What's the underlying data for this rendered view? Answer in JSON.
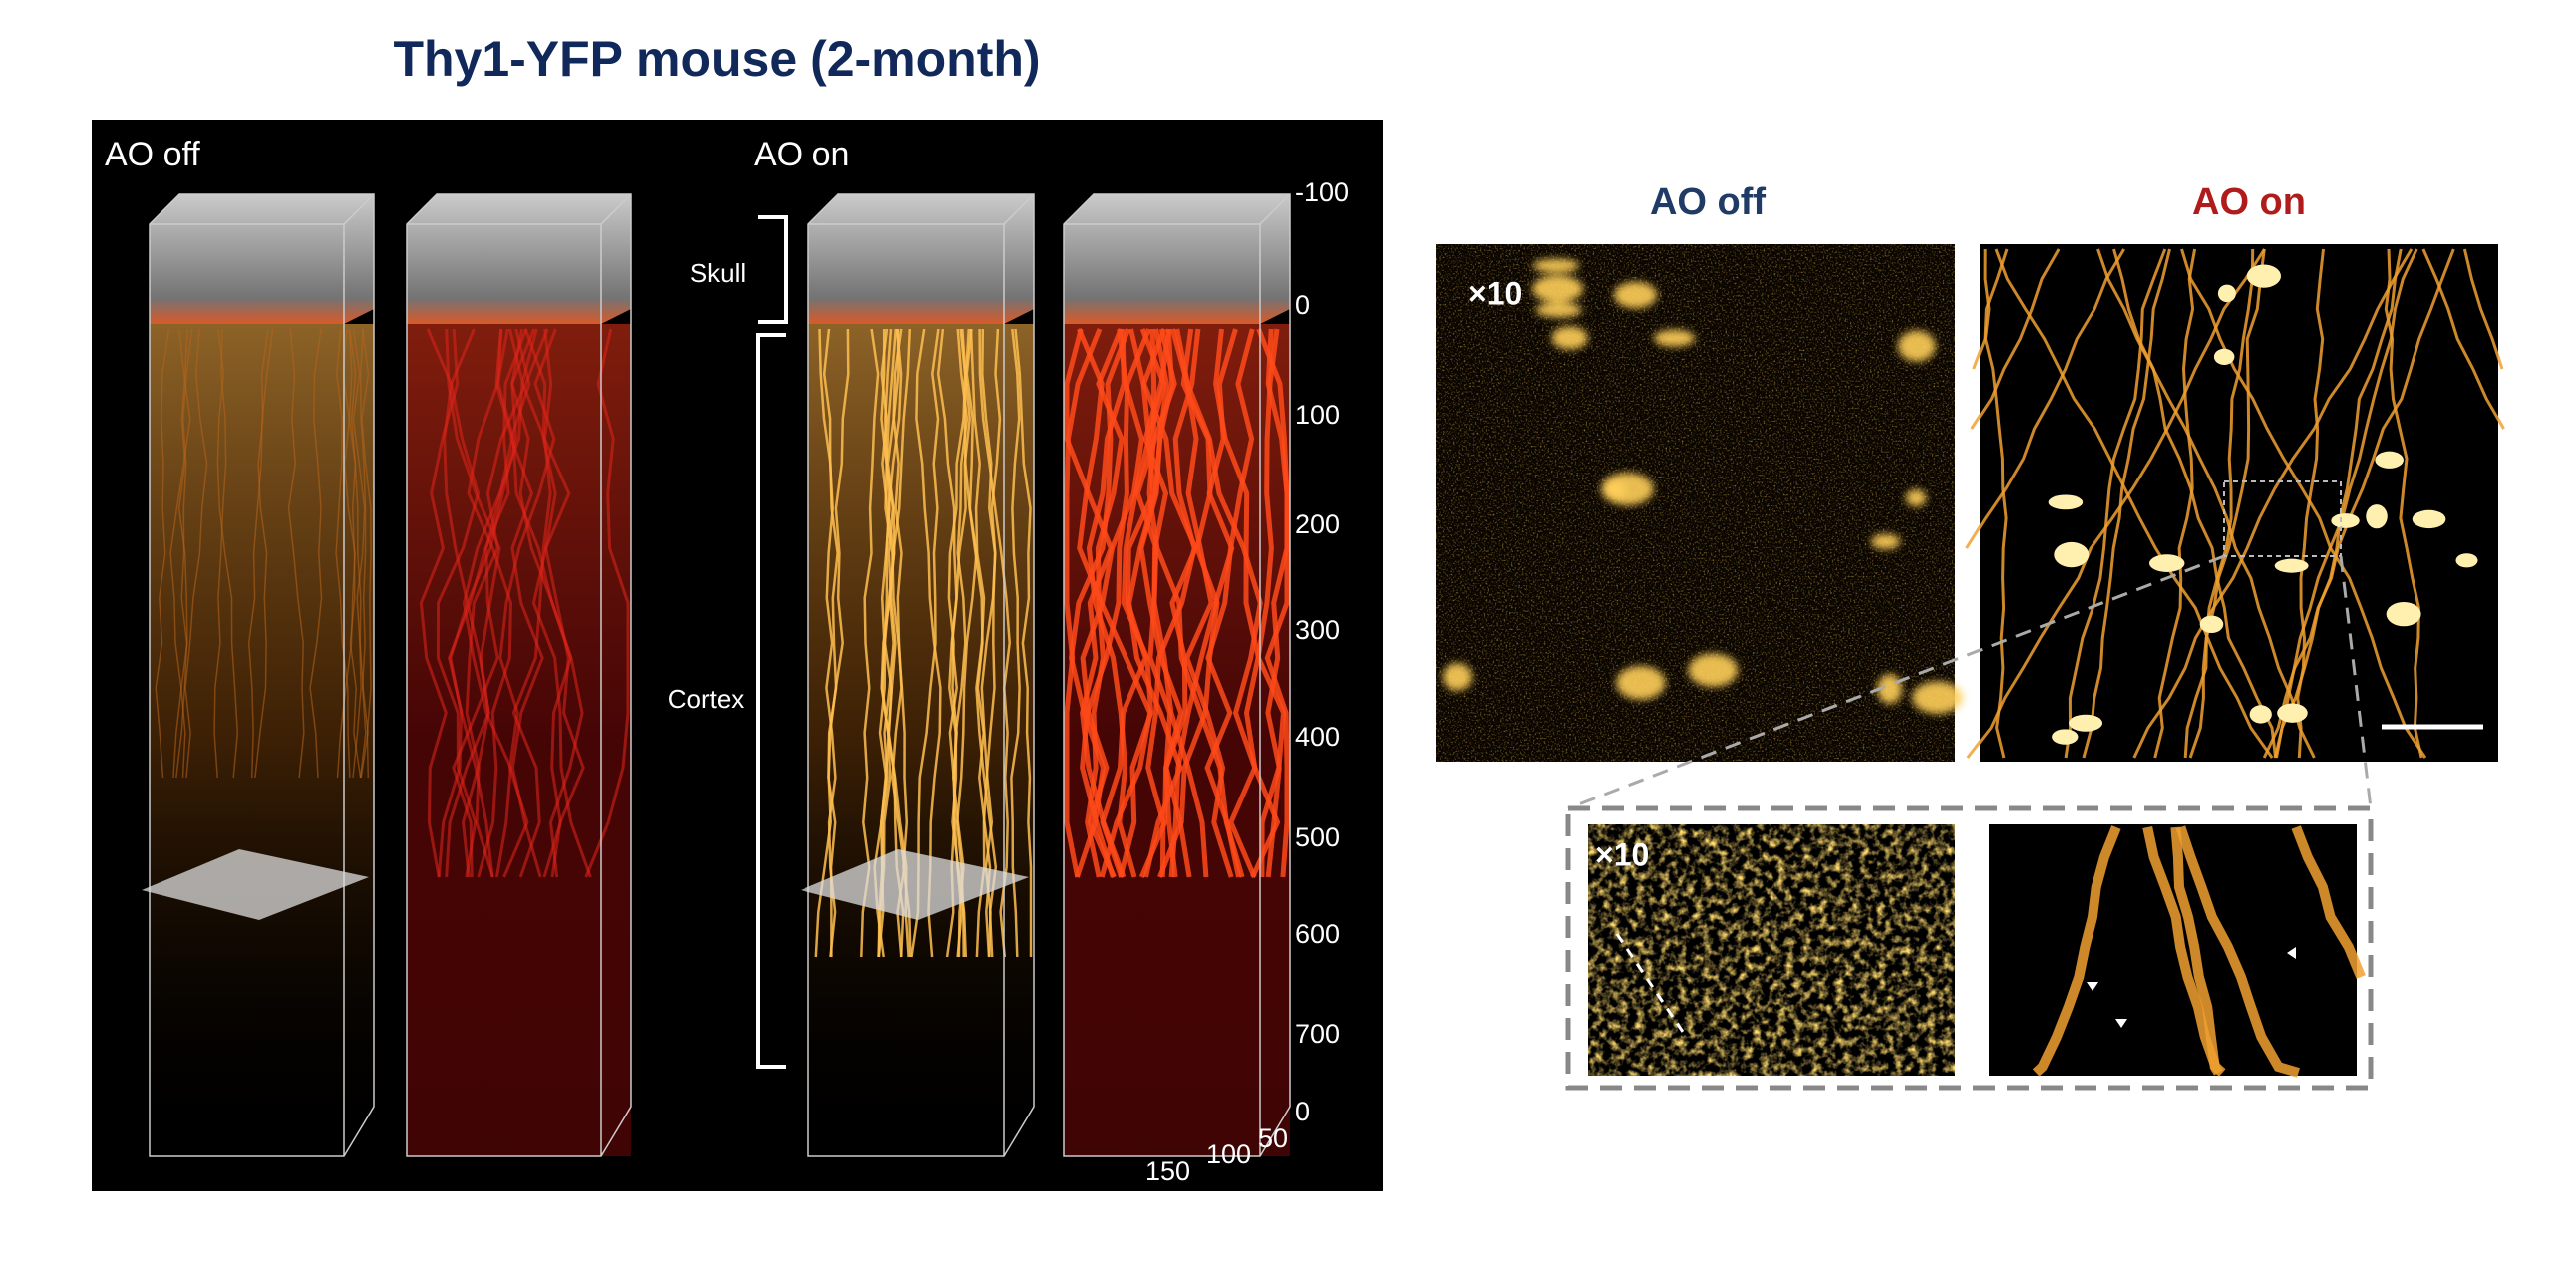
{
  "title": "Thy1-YFP mouse (2-month)",
  "left_panel": {
    "labels": [
      "AO off",
      "AO on"
    ],
    "regions": [
      "Skull",
      "Cortex"
    ],
    "depth_ticks": [
      -100,
      0,
      100,
      200,
      300,
      400,
      500,
      600,
      700
    ],
    "base_ticks": [
      0,
      50,
      100,
      150
    ]
  },
  "right_panel": {
    "headers": [
      "AO off",
      "AO on"
    ],
    "magnification": [
      "×10",
      "×10"
    ]
  }
}
